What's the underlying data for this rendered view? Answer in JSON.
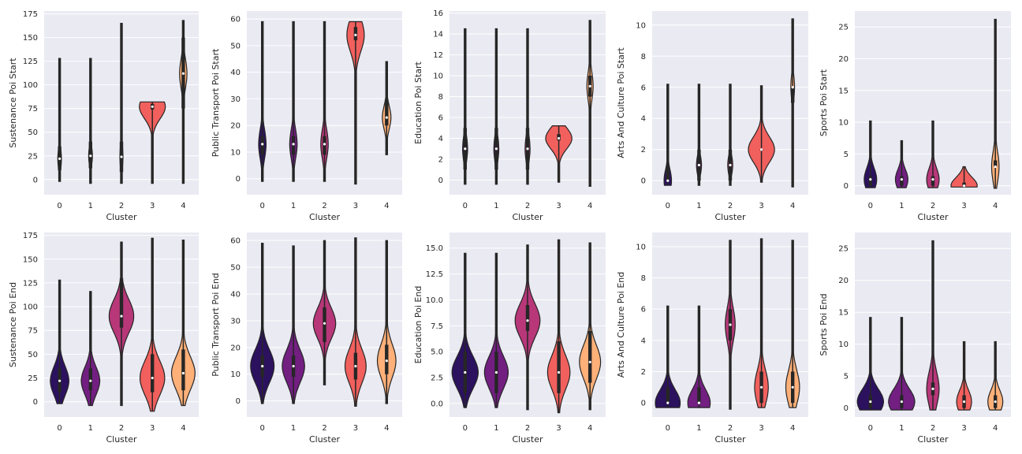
{
  "figure": {
    "background": "#ffffff",
    "axes_background": "#eaeaf2",
    "grid_color": "#ffffff",
    "outline_color": "#262626",
    "cluster_colors": [
      "#2c115f",
      "#721f81",
      "#b73779",
      "#f1605d",
      "#feb078"
    ]
  },
  "chart_data": [
    {
      "type": "violin",
      "ylabel": "Sustenance Poi Start",
      "xlabel": "Cluster",
      "categories": [
        "0",
        "1",
        "2",
        "3",
        "4"
      ],
      "ylim": [
        -16,
        178
      ],
      "yticks": [
        0,
        25,
        50,
        75,
        100,
        125,
        150,
        175
      ],
      "ytick_labels": [
        "0",
        "25",
        "50",
        "75",
        "100",
        "125",
        "150",
        "175"
      ],
      "grid": true,
      "series": [
        {
          "cluster": "0",
          "median": 22,
          "q1": 10,
          "q3": 35,
          "min": -2,
          "max": 128,
          "half_width": 0.06,
          "color": "#2c115f"
        },
        {
          "cluster": "1",
          "median": 25,
          "q1": 12,
          "q3": 40,
          "min": -4,
          "max": 128,
          "half_width": 0.06,
          "color": "#721f81"
        },
        {
          "cluster": "2",
          "median": 24,
          "q1": 8,
          "q3": 40,
          "min": -4,
          "max": 165,
          "half_width": 0.05,
          "color": "#b73779"
        },
        {
          "cluster": "3",
          "median": 77,
          "q1": 74,
          "q3": 80,
          "min": -4,
          "max": 82,
          "half_width": 0.42,
          "color": "#f1605d"
        },
        {
          "cluster": "4",
          "median": 112,
          "q1": 75,
          "q3": 150,
          "min": -4,
          "max": 168,
          "half_width": 0.12,
          "color": "#feb078"
        }
      ]
    },
    {
      "type": "violin",
      "ylabel": "Public Transport Poi Start",
      "xlabel": "Cluster",
      "categories": [
        "0",
        "1",
        "2",
        "3",
        "4"
      ],
      "ylim": [
        -6,
        63
      ],
      "yticks": [
        0,
        10,
        20,
        30,
        40,
        50,
        60
      ],
      "ytick_labels": [
        "0",
        "10",
        "20",
        "30",
        "40",
        "50",
        "60"
      ],
      "grid": true,
      "series": [
        {
          "cluster": "0",
          "median": 13,
          "q1": 9,
          "q3": 16,
          "min": -1,
          "max": 59,
          "half_width": 0.12,
          "color": "#2c115f"
        },
        {
          "cluster": "1",
          "median": 13,
          "q1": 9,
          "q3": 16,
          "min": -1,
          "max": 59,
          "half_width": 0.12,
          "color": "#721f81"
        },
        {
          "cluster": "2",
          "median": 13,
          "q1": 9,
          "q3": 16,
          "min": -1,
          "max": 59,
          "half_width": 0.12,
          "color": "#b73779"
        },
        {
          "cluster": "3",
          "median": 54,
          "q1": 52,
          "q3": 57,
          "min": -2,
          "max": 59,
          "half_width": 0.28,
          "color": "#f1605d"
        },
        {
          "cluster": "4",
          "median": 23,
          "q1": 20,
          "q3": 30,
          "min": 9,
          "max": 44,
          "half_width": 0.14,
          "color": "#feb078"
        }
      ]
    },
    {
      "type": "violin",
      "ylabel": "Education Poi Start",
      "xlabel": "Cluster",
      "categories": [
        "0",
        "1",
        "2",
        "3",
        "4"
      ],
      "ylim": [
        -1.4,
        16.2
      ],
      "yticks": [
        0,
        2,
        4,
        6,
        8,
        10,
        12,
        14,
        16
      ],
      "ytick_labels": [
        "0",
        "2",
        "4",
        "6",
        "8",
        "10",
        "12",
        "14",
        "16"
      ],
      "grid": true,
      "series": [
        {
          "cluster": "0",
          "median": 3,
          "q1": 1,
          "q3": 5,
          "min": -0.4,
          "max": 14.5,
          "half_width": 0.08,
          "color": "#2c115f"
        },
        {
          "cluster": "1",
          "median": 3,
          "q1": 1,
          "q3": 5,
          "min": -0.4,
          "max": 14.5,
          "half_width": 0.08,
          "color": "#721f81"
        },
        {
          "cluster": "2",
          "median": 3,
          "q1": 1,
          "q3": 5,
          "min": -0.4,
          "max": 14.5,
          "half_width": 0.08,
          "color": "#b73779"
        },
        {
          "cluster": "3",
          "median": 4,
          "q1": 3.8,
          "q3": 4.4,
          "min": -0.2,
          "max": 5.2,
          "half_width": 0.42,
          "color": "#f1605d"
        },
        {
          "cluster": "4",
          "median": 9,
          "q1": 8,
          "q3": 10,
          "min": -0.6,
          "max": 15.3,
          "half_width": 0.1,
          "color": "#feb078"
        }
      ]
    },
    {
      "type": "violin",
      "ylabel": "Arts And Culture Poi Start",
      "xlabel": "Cluster",
      "categories": [
        "0",
        "1",
        "2",
        "3",
        "4"
      ],
      "ylim": [
        -0.9,
        10.9
      ],
      "yticks": [
        0,
        2,
        4,
        6,
        8,
        10
      ],
      "ytick_labels": [
        "0",
        "2",
        "4",
        "6",
        "8",
        "10"
      ],
      "grid": true,
      "series": [
        {
          "cluster": "0",
          "median": 0,
          "q1": 0,
          "q3": 1,
          "min": -0.3,
          "max": 6.2,
          "half_width": 0.12,
          "color": "#2c115f"
        },
        {
          "cluster": "1",
          "median": 1,
          "q1": 0,
          "q3": 2,
          "min": -0.3,
          "max": 6.2,
          "half_width": 0.08,
          "color": "#721f81"
        },
        {
          "cluster": "2",
          "median": 1,
          "q1": 0,
          "q3": 2,
          "min": -0.3,
          "max": 6.2,
          "half_width": 0.08,
          "color": "#b73779"
        },
        {
          "cluster": "3",
          "median": 2,
          "q1": 2,
          "q3": 2,
          "min": -0.1,
          "max": 6.1,
          "half_width": 0.42,
          "color": "#f1605d"
        },
        {
          "cluster": "4",
          "median": 6,
          "q1": 5,
          "q3": 6,
          "min": -0.4,
          "max": 10.4,
          "half_width": 0.06,
          "color": "#feb078"
        }
      ]
    },
    {
      "type": "violin",
      "ylabel": "Sports Poi Start",
      "xlabel": "Cluster",
      "categories": [
        "0",
        "1",
        "2",
        "3",
        "4"
      ],
      "ylim": [
        -1.4,
        27.5
      ],
      "yticks": [
        0,
        5,
        10,
        15,
        20,
        25
      ],
      "ytick_labels": [
        "0",
        "5",
        "10",
        "15",
        "20",
        "25"
      ],
      "grid": true,
      "series": [
        {
          "cluster": "0",
          "median": 1,
          "q1": 0,
          "q3": 1.5,
          "min": -0.3,
          "max": 10.2,
          "half_width": 0.2,
          "color": "#2c115f"
        },
        {
          "cluster": "1",
          "median": 1,
          "q1": 0,
          "q3": 1.5,
          "min": -0.3,
          "max": 7.1,
          "half_width": 0.2,
          "color": "#721f81"
        },
        {
          "cluster": "2",
          "median": 1,
          "q1": 0,
          "q3": 1.5,
          "min": -0.3,
          "max": 10.2,
          "half_width": 0.2,
          "color": "#b73779"
        },
        {
          "cluster": "3",
          "median": 0,
          "q1": 0,
          "q3": 0.5,
          "min": -0.2,
          "max": 3,
          "half_width": 0.42,
          "color": "#f1605d"
        },
        {
          "cluster": "4",
          "median": 3,
          "q1": 3,
          "q3": 4,
          "min": -0.4,
          "max": 26.2,
          "half_width": 0.12,
          "color": "#feb078"
        }
      ]
    },
    {
      "type": "violin",
      "ylabel": "Sustenance Poi End",
      "xlabel": "Cluster",
      "categories": [
        "0",
        "1",
        "2",
        "3",
        "4"
      ],
      "ylim": [
        -16,
        178
      ],
      "yticks": [
        0,
        25,
        50,
        75,
        100,
        125,
        150,
        175
      ],
      "ytick_labels": [
        "0",
        "25",
        "50",
        "75",
        "100",
        "125",
        "150",
        "175"
      ],
      "grid": true,
      "series": [
        {
          "cluster": "0",
          "median": 22,
          "q1": 10,
          "q3": 35,
          "min": -2,
          "max": 128,
          "half_width": 0.3,
          "color": "#2c115f"
        },
        {
          "cluster": "1",
          "median": 22,
          "q1": 12,
          "q3": 35,
          "min": -4,
          "max": 116,
          "half_width": 0.3,
          "color": "#721f81"
        },
        {
          "cluster": "2",
          "median": 90,
          "q1": 78,
          "q3": 130,
          "min": -4,
          "max": 168,
          "half_width": 0.4,
          "color": "#b73779"
        },
        {
          "cluster": "3",
          "median": 25,
          "q1": 10,
          "q3": 50,
          "min": -10,
          "max": 172,
          "half_width": 0.4,
          "color": "#f1605d"
        },
        {
          "cluster": "4",
          "median": 30,
          "q1": 12,
          "q3": 55,
          "min": -4,
          "max": 170,
          "half_width": 0.38,
          "color": "#feb078"
        }
      ]
    },
    {
      "type": "violin",
      "ylabel": "Public Transport Poi End",
      "xlabel": "Cluster",
      "categories": [
        "0",
        "1",
        "2",
        "3",
        "4"
      ],
      "ylim": [
        -6,
        63
      ],
      "yticks": [
        0,
        10,
        20,
        30,
        40,
        50,
        60
      ],
      "ytick_labels": [
        "0",
        "10",
        "20",
        "30",
        "40",
        "50",
        "60"
      ],
      "grid": true,
      "series": [
        {
          "cluster": "0",
          "median": 13,
          "q1": 9,
          "q3": 17,
          "min": -1,
          "max": 59,
          "half_width": 0.38,
          "color": "#2c115f"
        },
        {
          "cluster": "1",
          "median": 13,
          "q1": 9,
          "q3": 17,
          "min": -1,
          "max": 58,
          "half_width": 0.36,
          "color": "#721f81"
        },
        {
          "cluster": "2",
          "median": 29,
          "q1": 22,
          "q3": 35,
          "min": 6,
          "max": 60,
          "half_width": 0.36,
          "color": "#b73779"
        },
        {
          "cluster": "3",
          "median": 13,
          "q1": 8,
          "q3": 18,
          "min": -2,
          "max": 61,
          "half_width": 0.34,
          "color": "#f1605d"
        },
        {
          "cluster": "4",
          "median": 15,
          "q1": 10,
          "q3": 21,
          "min": -1,
          "max": 60,
          "half_width": 0.3,
          "color": "#feb078"
        }
      ]
    },
    {
      "type": "violin",
      "ylabel": "Education Poi End",
      "xlabel": "Cluster",
      "categories": [
        "0",
        "1",
        "2",
        "3",
        "4"
      ],
      "ylim": [
        -1.3,
        16.5
      ],
      "yticks": [
        0,
        2.5,
        5,
        7.5,
        10,
        12.5,
        15
      ],
      "ytick_labels": [
        "0.0",
        "2.5",
        "5.0",
        "7.5",
        "10.0",
        "12.5",
        "15.0"
      ],
      "grid": true,
      "series": [
        {
          "cluster": "0",
          "median": 3,
          "q1": 1,
          "q3": 5,
          "min": -0.4,
          "max": 14.5,
          "half_width": 0.42,
          "color": "#2c115f"
        },
        {
          "cluster": "1",
          "median": 3,
          "q1": 1,
          "q3": 5,
          "min": -0.4,
          "max": 14.5,
          "half_width": 0.38,
          "color": "#721f81"
        },
        {
          "cluster": "2",
          "median": 8,
          "q1": 7,
          "q3": 9.5,
          "min": -0.6,
          "max": 15.3,
          "half_width": 0.4,
          "color": "#b73779"
        },
        {
          "cluster": "3",
          "median": 3,
          "q1": 1,
          "q3": 6,
          "min": -0.9,
          "max": 15.8,
          "half_width": 0.36,
          "color": "#f1605d"
        },
        {
          "cluster": "4",
          "median": 4,
          "q1": 2,
          "q3": 7,
          "min": -0.6,
          "max": 15.5,
          "half_width": 0.34,
          "color": "#feb078"
        }
      ]
    },
    {
      "type": "violin",
      "ylabel": "Arts And Culture Poi End",
      "xlabel": "Cluster",
      "categories": [
        "0",
        "1",
        "2",
        "3",
        "4"
      ],
      "ylim": [
        -0.9,
        10.9
      ],
      "yticks": [
        0,
        2,
        4,
        6,
        8,
        10
      ],
      "ytick_labels": [
        "0",
        "2",
        "4",
        "6",
        "8",
        "10"
      ],
      "grid": true,
      "series": [
        {
          "cluster": "0",
          "median": 0,
          "q1": 0,
          "q3": 1,
          "min": -0.3,
          "max": 6.2,
          "half_width": 0.4,
          "color": "#2c115f"
        },
        {
          "cluster": "1",
          "median": 0,
          "q1": 0,
          "q3": 1,
          "min": -0.3,
          "max": 6.2,
          "half_width": 0.36,
          "color": "#721f81"
        },
        {
          "cluster": "2",
          "median": 5,
          "q1": 4,
          "q3": 6,
          "min": -0.4,
          "max": 10.4,
          "half_width": 0.16,
          "color": "#b73779"
        },
        {
          "cluster": "3",
          "median": 1,
          "q1": 0,
          "q3": 2,
          "min": -0.3,
          "max": 10.5,
          "half_width": 0.22,
          "color": "#f1605d"
        },
        {
          "cluster": "4",
          "median": 1,
          "q1": 0,
          "q3": 2,
          "min": -0.3,
          "max": 10.4,
          "half_width": 0.22,
          "color": "#feb078"
        }
      ]
    },
    {
      "type": "violin",
      "ylabel": "Sports Poi End",
      "xlabel": "Cluster",
      "categories": [
        "0",
        "1",
        "2",
        "3",
        "4"
      ],
      "ylim": [
        -1.4,
        27.5
      ],
      "yticks": [
        0,
        5,
        10,
        15,
        20,
        25
      ],
      "ytick_labels": [
        "0",
        "5",
        "10",
        "15",
        "20",
        "25"
      ],
      "grid": true,
      "series": [
        {
          "cluster": "0",
          "median": 1,
          "q1": 0,
          "q3": 2,
          "min": -0.3,
          "max": 14.2,
          "half_width": 0.42,
          "color": "#2c115f"
        },
        {
          "cluster": "1",
          "median": 1,
          "q1": 0,
          "q3": 2,
          "min": -0.3,
          "max": 14.2,
          "half_width": 0.42,
          "color": "#721f81"
        },
        {
          "cluster": "2",
          "median": 3,
          "q1": 2,
          "q3": 4,
          "min": -0.3,
          "max": 26.2,
          "half_width": 0.2,
          "color": "#b73779"
        },
        {
          "cluster": "3",
          "median": 1,
          "q1": 0,
          "q3": 2,
          "min": -0.3,
          "max": 10.4,
          "half_width": 0.24,
          "color": "#f1605d"
        },
        {
          "cluster": "4",
          "median": 1,
          "q1": 0,
          "q3": 2,
          "min": -0.3,
          "max": 10.4,
          "half_width": 0.24,
          "color": "#feb078"
        }
      ]
    }
  ]
}
